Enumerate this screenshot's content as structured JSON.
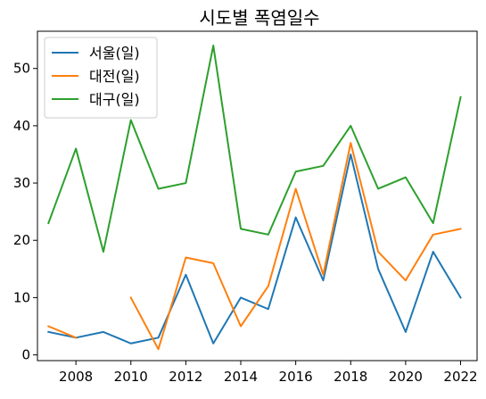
{
  "chart_data": {
    "type": "line",
    "title": "시도별 폭염일수",
    "xlabel": "",
    "ylabel": "",
    "x": [
      2007,
      2008,
      2009,
      2010,
      2011,
      2012,
      2013,
      2014,
      2015,
      2016,
      2017,
      2018,
      2019,
      2020,
      2021,
      2022
    ],
    "xlim": [
      2006.6,
      2022.6
    ],
    "ylim": [
      -1,
      56.5
    ],
    "xticks": [
      2008,
      2010,
      2012,
      2014,
      2016,
      2018,
      2020,
      2022
    ],
    "yticks": [
      0,
      10,
      20,
      30,
      40,
      50
    ],
    "grid": false,
    "legend": "top-left",
    "series": [
      {
        "name": "서울(일)",
        "color": "#1f77b4",
        "values": [
          4,
          3,
          4,
          2,
          3,
          14,
          2,
          10,
          8,
          24,
          13,
          35,
          15,
          4,
          18,
          10
        ]
      },
      {
        "name": "대전(일)",
        "color": "#ff7f0e",
        "values": [
          5,
          3,
          null,
          10,
          1,
          17,
          16,
          5,
          12,
          29,
          14,
          37,
          18,
          13,
          21,
          22
        ]
      },
      {
        "name": "대구(일)",
        "color": "#2ca02c",
        "values": [
          23,
          36,
          18,
          41,
          29,
          30,
          54,
          22,
          21,
          32,
          33,
          40,
          29,
          31,
          23,
          45
        ]
      }
    ]
  }
}
